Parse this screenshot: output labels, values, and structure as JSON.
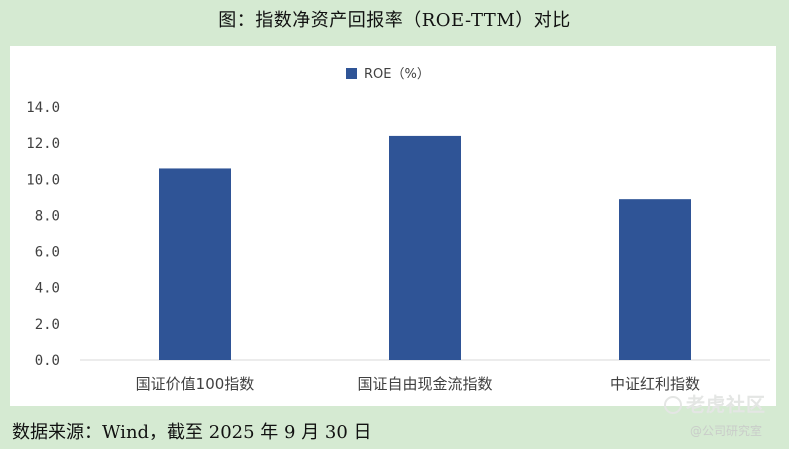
{
  "figure": {
    "title": "图：指数净资产回报率（ROE-TTM）对比",
    "source": "数据来源：Wind，截至 2025 年 9 月 30 日"
  },
  "watermark": {
    "main": "老虎社区",
    "sub": "@公司研究室"
  },
  "colors": {
    "bar": "#2f5496",
    "background": "#d5ead2",
    "panel": "#ffffff",
    "axis": "#d9d9d9",
    "text": "#404040"
  },
  "chart_data": {
    "type": "bar",
    "categories": [
      "国证价值100指数",
      "国证自由现金流指数",
      "中证红利指数"
    ],
    "series": [
      {
        "name": "ROE（%）",
        "values": [
          10.6,
          12.4,
          8.9
        ]
      }
    ],
    "yticks": [
      "0.0",
      "2.0",
      "4.0",
      "6.0",
      "8.0",
      "10.0",
      "12.0",
      "14.0"
    ],
    "ylim": [
      0,
      14
    ],
    "grid": false,
    "legend_position": "top-center"
  }
}
